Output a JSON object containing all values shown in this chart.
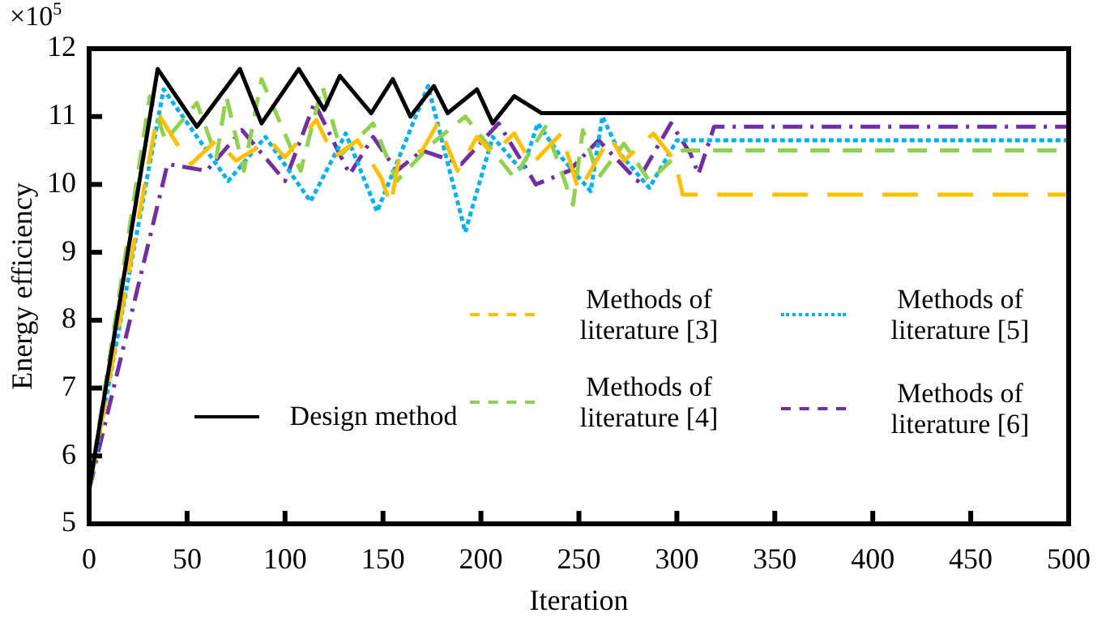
{
  "chart_data": {
    "type": "line",
    "xlabel": "Iteration",
    "ylabel": "Energy efficiency",
    "annotations": [
      "×10$^{5}$"
    ],
    "xlim": [
      0,
      500
    ],
    "xticks": [
      0,
      50,
      100,
      150,
      200,
      250,
      300,
      350,
      400,
      450,
      500
    ],
    "ylim": [
      5,
      12
    ],
    "yticks": [
      5,
      6,
      7,
      8,
      9,
      10,
      11,
      12
    ],
    "grid": false,
    "legend": "bottom",
    "marker": "none",
    "series": [
      {
        "name": "Design method",
        "color": "#000000",
        "line_style": "solid",
        "x": [
          0,
          35,
          55,
          77,
          88,
          107,
          120,
          128,
          144,
          155,
          164,
          176,
          183,
          198,
          206,
          217,
          231,
          500
        ],
        "values": [
          5.5,
          11.7,
          10.85,
          11.7,
          10.9,
          11.7,
          11.1,
          11.6,
          11.05,
          11.55,
          11.0,
          11.45,
          11.05,
          11.4,
          10.9,
          11.3,
          11.05,
          11.05
        ]
      },
      {
        "name": "Methods of literature [3]",
        "color": "#ffc000",
        "line_style": "longdash",
        "x": [
          0,
          35,
          47,
          52,
          65,
          75,
          92,
          100,
          116,
          125,
          137,
          149,
          154,
          158,
          170,
          178,
          188,
          198,
          206,
          217,
          226,
          241,
          250,
          266,
          273,
          288,
          299,
          303,
          500
        ],
        "values": [
          5.5,
          11.05,
          10.5,
          10.3,
          10.65,
          10.35,
          10.65,
          10.4,
          10.95,
          10.4,
          10.65,
          10.1,
          9.7,
          10.35,
          10.5,
          10.9,
          10.2,
          10.7,
          10.45,
          10.75,
          10.3,
          10.75,
          9.9,
          10.7,
          10.35,
          10.75,
          10.35,
          9.85,
          9.85
        ]
      },
      {
        "name": "Methods of literature [4]",
        "color": "#92d050",
        "line_style": "dashed",
        "x": [
          0,
          31,
          39,
          55,
          65,
          70,
          79,
          88,
          108,
          119,
          129,
          145,
          157,
          175,
          192,
          217,
          233,
          247,
          252,
          260,
          273,
          286,
          297,
          303,
          500
        ],
        "values": [
          5.5,
          11.3,
          10.65,
          11.2,
          10.4,
          11.3,
          10.2,
          11.55,
          10.2,
          11.45,
          10.45,
          10.9,
          10.05,
          10.6,
          11.0,
          10.1,
          10.85,
          9.7,
          10.8,
          10.1,
          10.6,
          10.05,
          10.35,
          10.5,
          10.5
        ]
      },
      {
        "name": "Methods of literature [5]",
        "color": "#00b0f0",
        "line_style": "dotted",
        "x": [
          0,
          38,
          71,
          90,
          113,
          131,
          147,
          173,
          192,
          206,
          221,
          229,
          241,
          256,
          262,
          271,
          286,
          300,
          500
        ],
        "values": [
          5.5,
          11.4,
          10.05,
          10.7,
          9.75,
          10.75,
          9.6,
          11.45,
          9.3,
          10.7,
          10.2,
          10.9,
          10.4,
          9.9,
          11.0,
          10.45,
          9.95,
          10.65,
          10.65
        ]
      },
      {
        "name": "Methods of literature [6]",
        "color": "#7030a0",
        "line_style": "dashdot",
        "x": [
          0,
          40,
          60,
          78,
          100,
          115,
          133,
          145,
          157,
          170,
          190,
          209,
          228,
          245,
          260,
          280,
          297,
          307,
          311,
          319,
          500
        ],
        "values": [
          5.5,
          10.3,
          10.2,
          10.8,
          10.05,
          11.2,
          10.15,
          10.7,
          10.2,
          10.5,
          10.3,
          10.9,
          10.0,
          10.2,
          10.65,
          10.05,
          10.9,
          10.45,
          10.15,
          10.85,
          10.85
        ]
      }
    ]
  }
}
